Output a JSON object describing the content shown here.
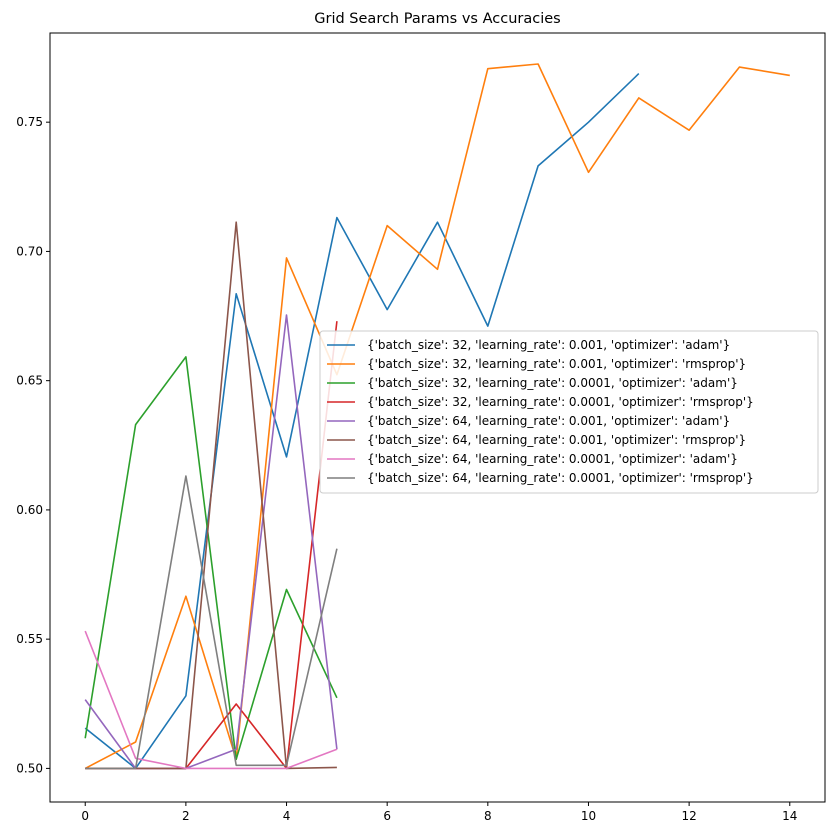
{
  "chart_data": {
    "type": "line",
    "title": "Grid Search Params vs Accuracies",
    "xlabel": "",
    "ylabel": "",
    "xlim": [
      -0.7,
      14.7
    ],
    "ylim": [
      0.487,
      0.7845
    ],
    "xticks": [
      0,
      2,
      4,
      6,
      8,
      10,
      12,
      14
    ],
    "yticks": [
      0.5,
      0.55,
      0.6,
      0.65,
      0.7,
      0.75
    ],
    "ytick_labels": [
      "0.50",
      "0.55",
      "0.60",
      "0.65",
      "0.70",
      "0.75"
    ],
    "grid": false,
    "legend_position": "center-right",
    "series": [
      {
        "name": "{'batch_size': 32, 'learning_rate': 0.001, 'optimizer': 'adam'}",
        "color": "#1f77b4",
        "x": [
          0,
          1,
          2,
          3,
          4,
          5,
          6,
          7,
          8,
          9,
          10,
          11
        ],
        "values": [
          0.5156,
          0.5,
          0.5281,
          0.6836,
          0.6205,
          0.7131,
          0.6775,
          0.7113,
          0.6711,
          0.7331,
          0.75,
          0.7688
        ]
      },
      {
        "name": "{'batch_size': 32, 'learning_rate': 0.001, 'optimizer': 'rmsprop'}",
        "color": "#ff7f0e",
        "x": [
          0,
          1,
          2,
          3,
          4,
          5,
          6,
          7,
          8,
          9,
          10,
          11,
          12,
          13,
          14
        ],
        "values": [
          0.5,
          0.5102,
          0.5666,
          0.5035,
          0.6975,
          0.6523,
          0.71,
          0.6931,
          0.7707,
          0.7725,
          0.7306,
          0.7594,
          0.7469,
          0.7713,
          0.7681
        ]
      },
      {
        "name": "{'batch_size': 32, 'learning_rate': 0.0001, 'optimizer': 'adam'}",
        "color": "#2ca02c",
        "x": [
          0,
          1,
          2,
          3,
          4,
          5
        ],
        "values": [
          0.5117,
          0.633,
          0.6592,
          0.5035,
          0.5692,
          0.5273
        ]
      },
      {
        "name": "{'batch_size': 32, 'learning_rate': 0.0001, 'optimizer': 'rmsprop'}",
        "color": "#d62728",
        "x": [
          0,
          1,
          2,
          3,
          4,
          5
        ],
        "values": [
          0.5,
          0.5,
          0.5,
          0.5249,
          0.5,
          0.673
        ]
      },
      {
        "name": "{'batch_size': 64, 'learning_rate': 0.001, 'optimizer': 'adam'}",
        "color": "#9467bd",
        "x": [
          0,
          1,
          2,
          3,
          4,
          5
        ],
        "values": [
          0.5266,
          0.5,
          0.5,
          0.5074,
          0.6754,
          0.5074
        ]
      },
      {
        "name": "{'batch_size': 64, 'learning_rate': 0.001, 'optimizer': 'rmsprop'}",
        "color": "#8c564b",
        "x": [
          0,
          1,
          2,
          3,
          4,
          5
        ],
        "values": [
          0.5,
          0.5,
          0.5,
          0.7113,
          0.5,
          0.5004
        ]
      },
      {
        "name": "{'batch_size': 64, 'learning_rate': 0.0001, 'optimizer': 'adam'}",
        "color": "#e377c2",
        "x": [
          0,
          1,
          2,
          3,
          4,
          5
        ],
        "values": [
          0.5531,
          0.5039,
          0.5,
          0.5,
          0.5,
          0.5074
        ]
      },
      {
        "name": "{'batch_size': 64, 'learning_rate': 0.0001, 'optimizer': 'rmsprop'}",
        "color": "#7f7f7f",
        "x": [
          0,
          1,
          2,
          3,
          4,
          5
        ],
        "values": [
          0.5,
          0.5,
          0.6131,
          0.5012,
          0.5012,
          0.585
        ]
      }
    ]
  }
}
